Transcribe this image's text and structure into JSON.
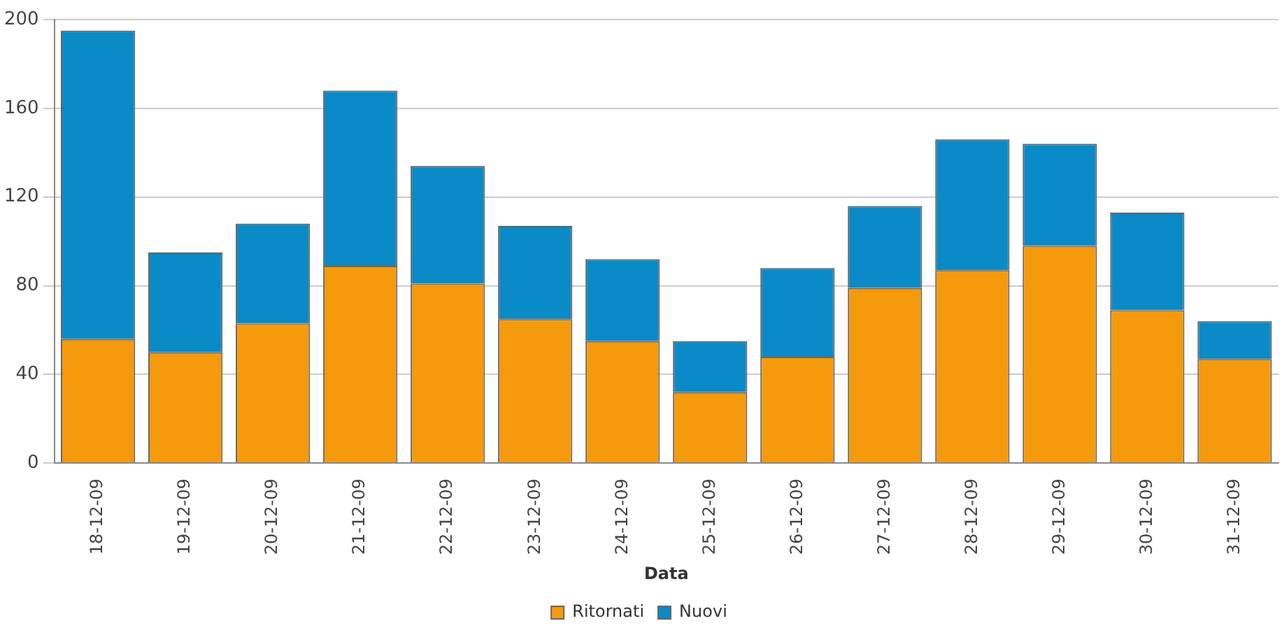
{
  "chart_data": {
    "type": "bar",
    "xlabel": "Data",
    "categories": [
      "18-12-09",
      "19-12-09",
      "20-12-09",
      "21-12-09",
      "22-12-09",
      "23-12-09",
      "24-12-09",
      "25-12-09",
      "26-12-09",
      "27-12-09",
      "28-12-09",
      "29-12-09",
      "30-12-09",
      "31-12-09"
    ],
    "series": [
      {
        "name": "Ritornati",
        "color": "#f59a0c",
        "values": [
          56,
          50,
          63,
          89,
          81,
          65,
          55,
          32,
          48,
          79,
          87,
          98,
          69,
          47
        ]
      },
      {
        "name": "Nuovi",
        "color": "#0a8ac6",
        "values": [
          139,
          45,
          45,
          79,
          53,
          42,
          37,
          23,
          40,
          37,
          59,
          46,
          44,
          17
        ]
      }
    ],
    "stacked": true,
    "ylim": [
      0,
      200
    ],
    "yticks": [
      0,
      40,
      80,
      120,
      160,
      200
    ],
    "grid": "y",
    "legend": "bottom"
  }
}
